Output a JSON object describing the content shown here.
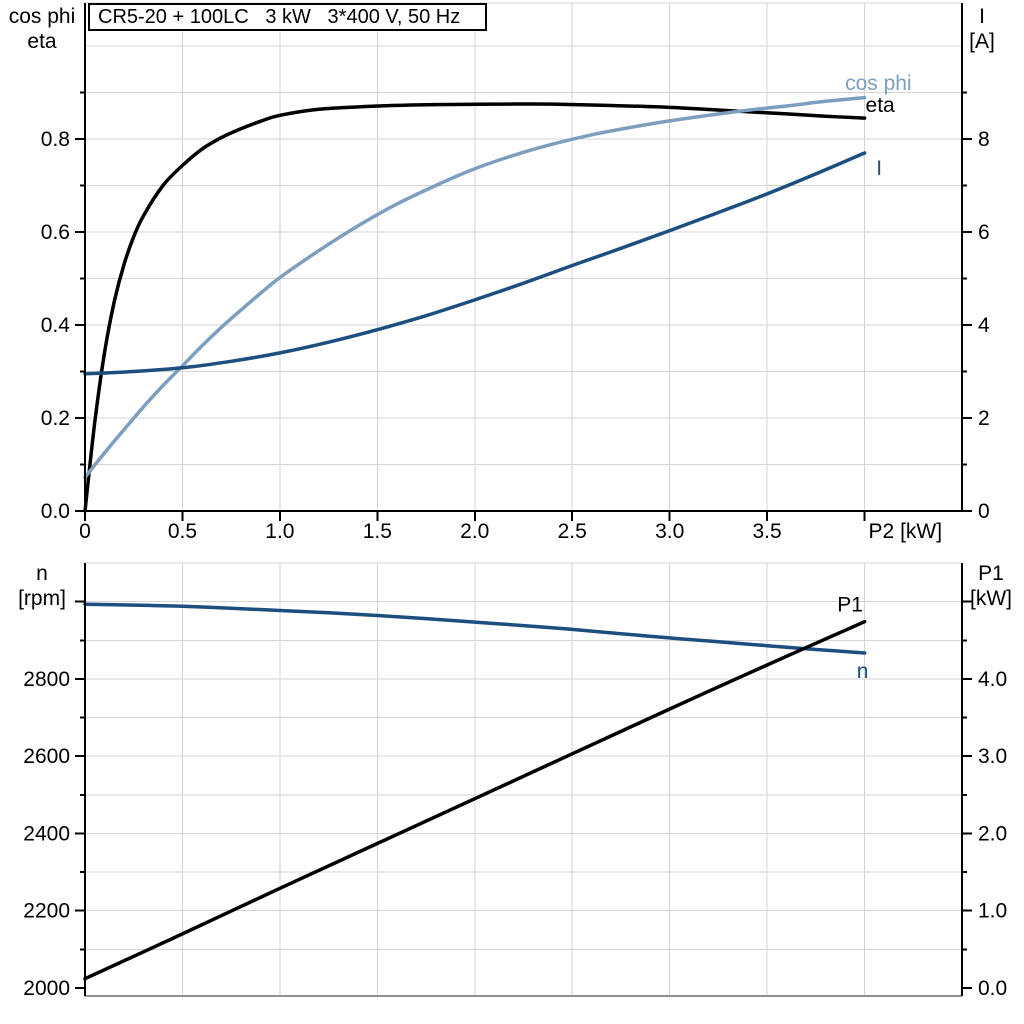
{
  "colors": {
    "background": "#ffffff",
    "dark_blue": "#1c4e80",
    "light_blue": "#7d9ebf",
    "black": "#000000",
    "grid": "#d4d4d4",
    "panel_border": "#8f8f8f"
  },
  "title_box": {
    "text": "CR5-20 + 100LC   3 kW   3*400 V, 50 Hz"
  },
  "chart_data": [
    {
      "type": "line",
      "panel": "top",
      "title": "CR5-20 + 100LC   3 kW   3*400 V, 50 Hz",
      "xlabel": "P2 [kW]",
      "xlim": [
        0,
        4.5
      ],
      "x_major_ticks": [
        0,
        0.5,
        1,
        1.5,
        2,
        2.5,
        3,
        3.5,
        4
      ],
      "x_tick_labels": [
        "0",
        "0.5",
        "1.0",
        "1.5",
        "2.0",
        "2.5",
        "3.0",
        "3.5",
        ""
      ],
      "x_grid": [
        0.5,
        1,
        1.5,
        2,
        2.5,
        3,
        3.5,
        4
      ],
      "grid_on": true,
      "left_axis": {
        "corner_label_lines": [
          "cos phi",
          "eta"
        ],
        "lim": [
          0,
          1.0925
        ],
        "major_ticks": [
          0,
          0.2,
          0.4,
          0.6,
          0.8
        ],
        "tick_labels": [
          "0.0",
          "0.2",
          "0.4",
          "0.6",
          "0.8"
        ],
        "minor_ticks": [
          0.1,
          0.3,
          0.5,
          0.7,
          0.9
        ],
        "grid": [
          0.1,
          0.2,
          0.3,
          0.4,
          0.5,
          0.6,
          0.7,
          0.8,
          0.9,
          1.0
        ]
      },
      "right_axis": {
        "corner_label_lines": [
          "I",
          "[A]"
        ],
        "lim": [
          0,
          10.925
        ],
        "major_ticks": [
          0,
          2,
          4,
          6,
          8
        ],
        "tick_labels": [
          "0",
          "2",
          "4",
          "6",
          "8"
        ],
        "minor_ticks": [
          1,
          3,
          5,
          7,
          9
        ]
      },
      "series": [
        {
          "name": "eta",
          "label": "eta",
          "axis": "left",
          "color": "#000000",
          "label_anchor": [
            4.005,
            0.858
          ],
          "points": [
            [
              0,
              0
            ],
            [
              0.05,
              0.19
            ],
            [
              0.1,
              0.34
            ],
            [
              0.15,
              0.45
            ],
            [
              0.2,
              0.53
            ],
            [
              0.25,
              0.59
            ],
            [
              0.3,
              0.635
            ],
            [
              0.4,
              0.7
            ],
            [
              0.5,
              0.743
            ],
            [
              0.6,
              0.778
            ],
            [
              0.7,
              0.803
            ],
            [
              0.8,
              0.822
            ],
            [
              0.9,
              0.838
            ],
            [
              1.0,
              0.851
            ],
            [
              1.2,
              0.864
            ],
            [
              1.5,
              0.871
            ],
            [
              1.8,
              0.874
            ],
            [
              2.1,
              0.875
            ],
            [
              2.4,
              0.875
            ],
            [
              2.7,
              0.872
            ],
            [
              3.0,
              0.868
            ],
            [
              3.3,
              0.861
            ],
            [
              3.6,
              0.854
            ],
            [
              3.8,
              0.849
            ],
            [
              4.0,
              0.845
            ]
          ]
        },
        {
          "name": "cos phi",
          "label": "cos phi",
          "axis": "left",
          "color": "#7d9ebf",
          "label_anchor": [
            3.9,
            0.905
          ],
          "points": [
            [
              0,
              0.072
            ],
            [
              0.1,
              0.125
            ],
            [
              0.2,
              0.175
            ],
            [
              0.3,
              0.224
            ],
            [
              0.4,
              0.27
            ],
            [
              0.5,
              0.312
            ],
            [
              0.6,
              0.355
            ],
            [
              0.7,
              0.395
            ],
            [
              0.8,
              0.432
            ],
            [
              0.9,
              0.468
            ],
            [
              1.0,
              0.502
            ],
            [
              1.2,
              0.56
            ],
            [
              1.4,
              0.613
            ],
            [
              1.6,
              0.66
            ],
            [
              1.8,
              0.7
            ],
            [
              2.0,
              0.736
            ],
            [
              2.2,
              0.765
            ],
            [
              2.4,
              0.789
            ],
            [
              2.6,
              0.809
            ],
            [
              2.8,
              0.825
            ],
            [
              3.0,
              0.839
            ],
            [
              3.2,
              0.851
            ],
            [
              3.4,
              0.862
            ],
            [
              3.6,
              0.871
            ],
            [
              3.8,
              0.881
            ],
            [
              4.0,
              0.889
            ]
          ]
        },
        {
          "name": "I",
          "label": "I",
          "axis": "right",
          "color": "#1c4e80",
          "label_anchor": [
            4.06,
            7.23
          ],
          "points": [
            [
              0,
              2.95
            ],
            [
              0.25,
              3.0
            ],
            [
              0.5,
              3.08
            ],
            [
              0.75,
              3.22
            ],
            [
              1.0,
              3.4
            ],
            [
              1.25,
              3.63
            ],
            [
              1.5,
              3.9
            ],
            [
              1.75,
              4.2
            ],
            [
              2.0,
              4.54
            ],
            [
              2.25,
              4.9
            ],
            [
              2.5,
              5.28
            ],
            [
              2.75,
              5.65
            ],
            [
              3.0,
              6.03
            ],
            [
              3.25,
              6.42
            ],
            [
              3.5,
              6.82
            ],
            [
              3.75,
              7.25
            ],
            [
              4.0,
              7.7
            ]
          ]
        }
      ]
    },
    {
      "type": "line",
      "panel": "bottom",
      "title": "",
      "xlabel": "",
      "xlim": [
        0,
        4.5
      ],
      "x_major_ticks": [],
      "x_tick_labels": [],
      "x_grid": [
        0.5,
        1,
        1.5,
        2,
        2.5,
        3,
        3.5,
        4
      ],
      "grid_on": true,
      "left_axis": {
        "corner_label_lines": [
          "n",
          "[rpm]"
        ],
        "lim": [
          1979,
          3100
        ],
        "major_ticks": [
          2000,
          2200,
          2400,
          2600,
          2800,
          3000
        ],
        "tick_labels": [
          "2000",
          "2200",
          "2400",
          "2600",
          "2800",
          ""
        ],
        "minor_ticks": [
          2100,
          2300,
          2500,
          2700,
          2900
        ],
        "grid": [
          2100,
          2200,
          2300,
          2400,
          2500,
          2600,
          2700,
          2800,
          2900,
          3000
        ]
      },
      "right_axis": {
        "corner_label_lines": [
          "P1",
          "[kW]"
        ],
        "lim": [
          -0.104,
          5.5
        ],
        "major_ticks": [
          0,
          1,
          2,
          3,
          4,
          5
        ],
        "tick_labels": [
          "0.0",
          "1.0",
          "2.0",
          "3.0",
          "4.0",
          ""
        ],
        "minor_ticks": [
          0.5,
          1.5,
          2.5,
          3.5,
          4.5
        ]
      },
      "series": [
        {
          "name": "n",
          "label": "n",
          "axis": "left",
          "color": "#1c4e80",
          "label_anchor": [
            3.96,
            2802
          ],
          "points": [
            [
              0,
              2993
            ],
            [
              0.25,
              2991
            ],
            [
              0.5,
              2988
            ],
            [
              0.75,
              2983
            ],
            [
              1.0,
              2977
            ],
            [
              1.25,
              2971
            ],
            [
              1.5,
              2964
            ],
            [
              1.75,
              2956
            ],
            [
              2.0,
              2947
            ],
            [
              2.25,
              2938
            ],
            [
              2.5,
              2928
            ],
            [
              2.75,
              2917
            ],
            [
              3.0,
              2906
            ],
            [
              3.25,
              2896
            ],
            [
              3.5,
              2886
            ],
            [
              3.75,
              2876
            ],
            [
              4.0,
              2867
            ]
          ]
        },
        {
          "name": "P1",
          "label": "P1",
          "axis": "right",
          "color": "#000000",
          "label_anchor": [
            3.86,
            4.87
          ],
          "points": [
            [
              0,
              0.12
            ],
            [
              0.5,
              0.7
            ],
            [
              1.0,
              1.29
            ],
            [
              1.5,
              1.87
            ],
            [
              2.0,
              2.45
            ],
            [
              2.5,
              3.03
            ],
            [
              3.0,
              3.61
            ],
            [
              3.5,
              4.18
            ],
            [
              4.0,
              4.74
            ]
          ]
        }
      ]
    }
  ]
}
